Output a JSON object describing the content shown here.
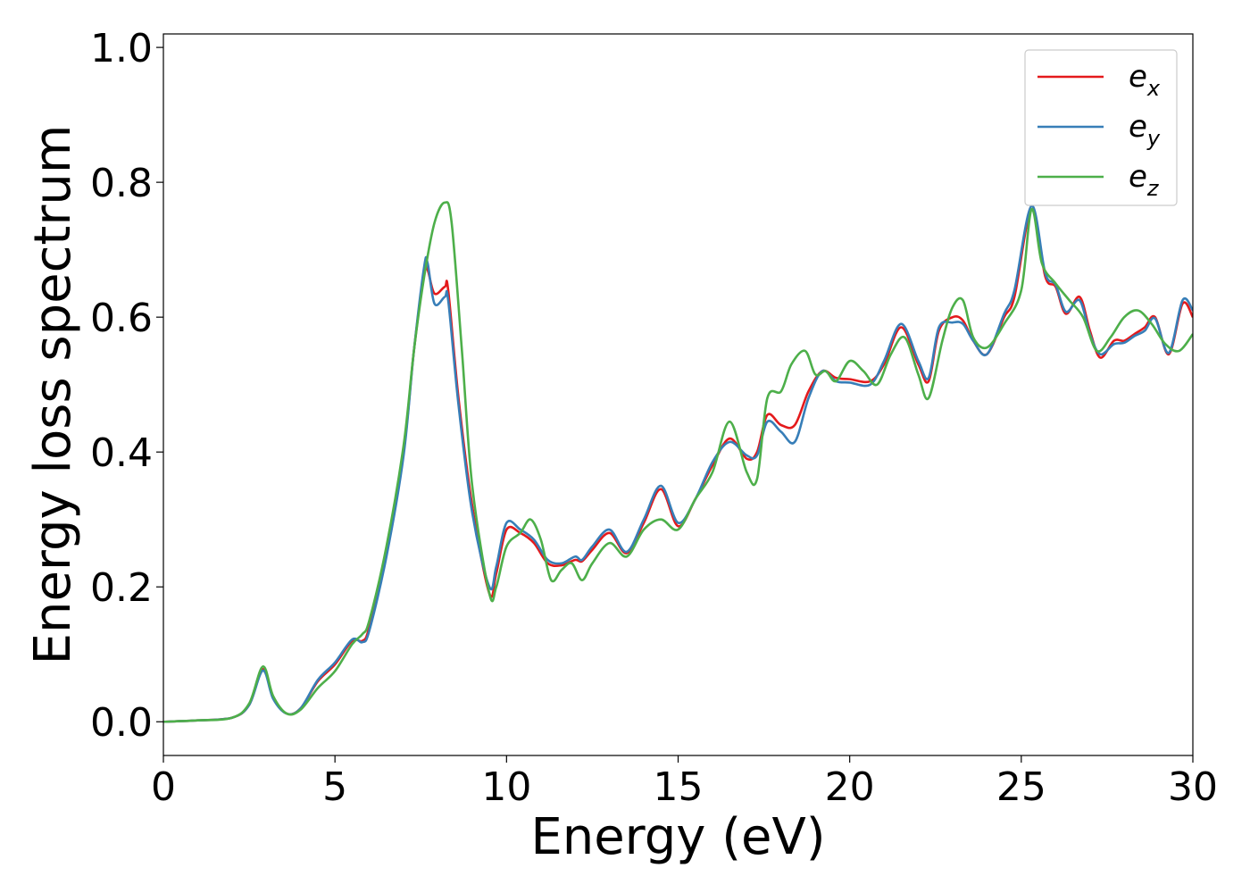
{
  "chart_data": {
    "type": "line",
    "title": "",
    "xlabel": "Energy (eV)",
    "ylabel": "Energy loss spectrum",
    "xlim": [
      0,
      30
    ],
    "ylim": [
      -0.05,
      1.02
    ],
    "xticks": [
      0,
      5,
      10,
      15,
      20,
      25,
      30
    ],
    "yticks": [
      0.0,
      0.2,
      0.4,
      0.6,
      0.8,
      1.0
    ],
    "xtick_labels": [
      "0",
      "5",
      "10",
      "15",
      "20",
      "25",
      "30"
    ],
    "ytick_labels": [
      "0.0",
      "0.2",
      "0.4",
      "0.6",
      "0.8",
      "1.0"
    ],
    "grid": false,
    "legend_position": "top-right",
    "series": [
      {
        "name": "e_x",
        "legend_base": "e",
        "legend_sub": "x",
        "color": "#e41a1c",
        "x": [
          0,
          1,
          2,
          2.5,
          2.9,
          3.2,
          3.6,
          4.0,
          4.5,
          5.0,
          5.5,
          5.8,
          6.0,
          6.5,
          7.0,
          7.3,
          7.6,
          7.7,
          7.9,
          8.2,
          8.3,
          8.6,
          9.0,
          9.5,
          9.7,
          10.0,
          10.4,
          10.8,
          11.2,
          11.6,
          12.0,
          12.2,
          12.5,
          13.0,
          13.5,
          14.0,
          14.5,
          15.0,
          15.5,
          16.0,
          16.5,
          17.0,
          17.3,
          17.6,
          18.0,
          18.4,
          18.8,
          19.2,
          19.6,
          20.0,
          20.6,
          21.0,
          21.5,
          22.0,
          22.3,
          22.6,
          23.0,
          23.3,
          23.6,
          24.0,
          24.5,
          24.8,
          25.3,
          25.7,
          26.0,
          26.3,
          26.7,
          27.0,
          27.3,
          27.7,
          28.0,
          28.3,
          28.6,
          28.9,
          29.3,
          29.7,
          30.0
        ],
        "y": [
          0.0,
          0.002,
          0.006,
          0.025,
          0.078,
          0.035,
          0.012,
          0.02,
          0.06,
          0.085,
          0.12,
          0.12,
          0.14,
          0.25,
          0.4,
          0.55,
          0.665,
          0.67,
          0.635,
          0.645,
          0.64,
          0.48,
          0.32,
          0.19,
          0.22,
          0.285,
          0.28,
          0.265,
          0.235,
          0.232,
          0.24,
          0.238,
          0.255,
          0.28,
          0.25,
          0.295,
          0.345,
          0.29,
          0.33,
          0.38,
          0.42,
          0.39,
          0.4,
          0.455,
          0.44,
          0.44,
          0.49,
          0.52,
          0.51,
          0.508,
          0.505,
          0.53,
          0.585,
          0.53,
          0.505,
          0.58,
          0.6,
          0.595,
          0.565,
          0.545,
          0.6,
          0.63,
          0.76,
          0.66,
          0.645,
          0.605,
          0.63,
          0.58,
          0.54,
          0.565,
          0.565,
          0.575,
          0.585,
          0.6,
          0.545,
          0.62,
          0.6
        ]
      },
      {
        "name": "e_y",
        "legend_base": "e",
        "legend_sub": "y",
        "color": "#377eb8",
        "x": [
          0,
          1,
          2,
          2.5,
          2.9,
          3.2,
          3.6,
          4.0,
          4.5,
          5.0,
          5.5,
          5.8,
          6.0,
          6.5,
          7.0,
          7.3,
          7.6,
          7.7,
          7.9,
          8.2,
          8.3,
          8.6,
          9.0,
          9.5,
          9.7,
          10.0,
          10.4,
          10.8,
          11.2,
          11.6,
          12.0,
          12.2,
          12.5,
          13.0,
          13.5,
          14.0,
          14.5,
          15.0,
          15.5,
          16.0,
          16.5,
          17.0,
          17.3,
          17.6,
          18.0,
          18.4,
          18.8,
          19.2,
          19.6,
          20.0,
          20.6,
          21.0,
          21.5,
          22.0,
          22.3,
          22.6,
          23.0,
          23.3,
          23.6,
          24.0,
          24.5,
          24.8,
          25.3,
          25.7,
          26.0,
          26.3,
          26.7,
          27.0,
          27.3,
          27.7,
          28.0,
          28.3,
          28.6,
          28.9,
          29.3,
          29.7,
          30.0
        ],
        "y": [
          0.0,
          0.002,
          0.006,
          0.025,
          0.076,
          0.034,
          0.012,
          0.02,
          0.062,
          0.088,
          0.122,
          0.118,
          0.135,
          0.245,
          0.395,
          0.55,
          0.675,
          0.68,
          0.62,
          0.63,
          0.625,
          0.47,
          0.31,
          0.2,
          0.23,
          0.295,
          0.285,
          0.27,
          0.24,
          0.235,
          0.245,
          0.24,
          0.26,
          0.285,
          0.252,
          0.3,
          0.35,
          0.295,
          0.33,
          0.385,
          0.415,
          0.395,
          0.395,
          0.445,
          0.43,
          0.415,
          0.48,
          0.52,
          0.505,
          0.503,
          0.5,
          0.535,
          0.59,
          0.535,
          0.51,
          0.585,
          0.592,
          0.59,
          0.565,
          0.545,
          0.605,
          0.64,
          0.765,
          0.665,
          0.648,
          0.608,
          0.625,
          0.575,
          0.545,
          0.56,
          0.562,
          0.572,
          0.58,
          0.598,
          0.547,
          0.625,
          0.61
        ]
      },
      {
        "name": "e_z",
        "legend_base": "e",
        "legend_sub": "z",
        "color": "#4daf4a",
        "x": [
          0,
          1,
          2,
          2.5,
          2.9,
          3.2,
          3.6,
          4.0,
          4.5,
          5.0,
          5.5,
          5.8,
          6.0,
          6.5,
          7.0,
          7.3,
          7.6,
          7.9,
          8.2,
          8.4,
          8.7,
          9.0,
          9.5,
          9.7,
          10.0,
          10.4,
          10.7,
          11.0,
          11.3,
          11.6,
          11.9,
          12.2,
          12.5,
          13.0,
          13.5,
          14.0,
          14.5,
          15.0,
          15.5,
          16.0,
          16.5,
          17.0,
          17.3,
          17.6,
          18.0,
          18.3,
          18.7,
          19.0,
          19.3,
          19.6,
          20.0,
          20.4,
          20.8,
          21.2,
          21.6,
          22.0,
          22.3,
          22.7,
          23.0,
          23.3,
          23.6,
          24.0,
          24.5,
          25.0,
          25.3,
          25.6,
          26.0,
          26.4,
          26.8,
          27.2,
          27.6,
          28.0,
          28.4,
          28.8,
          29.2,
          29.6,
          30.0
        ],
        "y": [
          0.0,
          0.002,
          0.006,
          0.027,
          0.082,
          0.038,
          0.012,
          0.018,
          0.05,
          0.075,
          0.115,
          0.13,
          0.15,
          0.26,
          0.41,
          0.55,
          0.66,
          0.74,
          0.77,
          0.74,
          0.55,
          0.35,
          0.19,
          0.2,
          0.26,
          0.28,
          0.3,
          0.27,
          0.21,
          0.225,
          0.235,
          0.21,
          0.235,
          0.265,
          0.245,
          0.285,
          0.3,
          0.285,
          0.33,
          0.37,
          0.445,
          0.37,
          0.36,
          0.48,
          0.49,
          0.53,
          0.55,
          0.515,
          0.52,
          0.505,
          0.535,
          0.52,
          0.5,
          0.545,
          0.57,
          0.515,
          0.48,
          0.565,
          0.615,
          0.625,
          0.57,
          0.555,
          0.59,
          0.64,
          0.76,
          0.68,
          0.65,
          0.625,
          0.6,
          0.55,
          0.57,
          0.6,
          0.61,
          0.59,
          0.56,
          0.55,
          0.575
        ]
      }
    ]
  }
}
